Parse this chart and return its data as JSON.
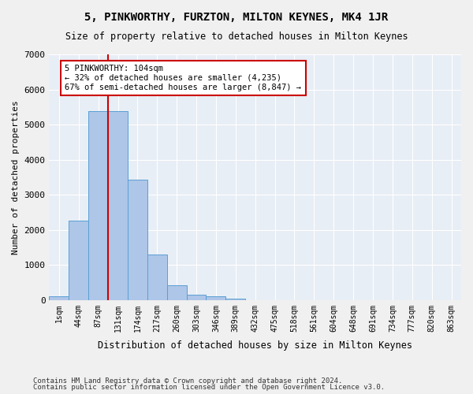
{
  "title": "5, PINKWORTHY, FURZTON, MILTON KEYNES, MK4 1JR",
  "subtitle": "Size of property relative to detached houses in Milton Keynes",
  "xlabel": "Distribution of detached houses by size in Milton Keynes",
  "ylabel": "Number of detached properties",
  "bar_values": [
    100,
    2270,
    5380,
    5380,
    3440,
    1300,
    430,
    150,
    100,
    30,
    5,
    2,
    1,
    0,
    0,
    0,
    0,
    0,
    0,
    0,
    0
  ],
  "bin_labels": [
    "1sqm",
    "44sqm",
    "87sqm",
    "131sqm",
    "174sqm",
    "217sqm",
    "260sqm",
    "303sqm",
    "346sqm",
    "389sqm",
    "432sqm",
    "475sqm",
    "518sqm",
    "561sqm",
    "604sqm",
    "648sqm",
    "691sqm",
    "734sqm",
    "777sqm",
    "820sqm",
    "863sqm"
  ],
  "bar_color": "#aec6e8",
  "bar_edge_color": "#5a9fd4",
  "bg_color": "#e8eef5",
  "grid_color": "#ffffff",
  "vline_color": "#cc0000",
  "annotation_text": "5 PINKWORTHY: 104sqm\n← 32% of detached houses are smaller (4,235)\n67% of semi-detached houses are larger (8,847) →",
  "annotation_box_color": "#ffffff",
  "annotation_box_edge": "#cc0000",
  "ylim": [
    0,
    7000
  ],
  "yticks": [
    0,
    1000,
    2000,
    3000,
    4000,
    5000,
    6000,
    7000
  ],
  "footer_line1": "Contains HM Land Registry data © Crown copyright and database right 2024.",
  "footer_line2": "Contains public sector information licensed under the Open Government Licence v3.0."
}
